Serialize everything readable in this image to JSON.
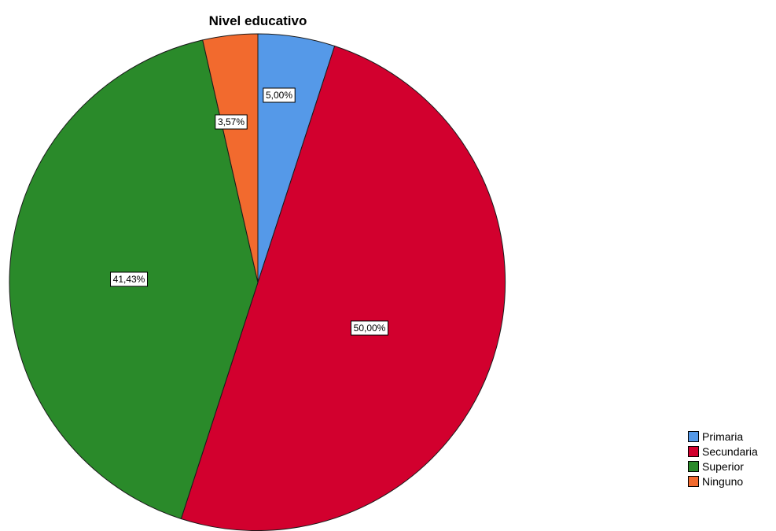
{
  "chart_data": {
    "type": "pie",
    "title": "Nivel educativo",
    "categories": [
      "Primaria",
      "Secundaria",
      "Superior",
      "Ninguno"
    ],
    "values": [
      5.0,
      50.0,
      41.43,
      3.57
    ],
    "value_labels": [
      "5,00%",
      "50,00%",
      "41,43%",
      "3,57%"
    ],
    "colors": [
      "#5599e8",
      "#d2002e",
      "#2a8a2a",
      "#f26a2e"
    ],
    "start_angle": "12 o'clock",
    "direction": "clockwise",
    "legend_position": "bottom-right"
  },
  "legend": {
    "items": [
      {
        "label": "Primaria",
        "color": "#5599e8"
      },
      {
        "label": "Secundaria",
        "color": "#d2002e"
      },
      {
        "label": "Superior",
        "color": "#2a8a2a"
      },
      {
        "label": "Ninguno",
        "color": "#f26a2e"
      }
    ]
  }
}
